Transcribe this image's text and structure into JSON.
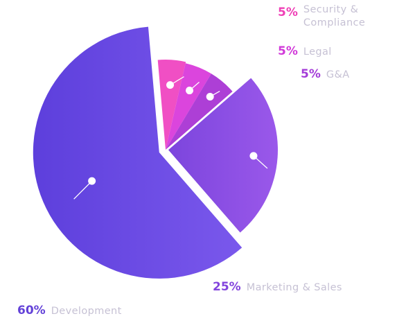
{
  "chart_data": {
    "type": "pie",
    "slices": [
      {
        "label": "Security & Compliance",
        "value": 5,
        "value_label": "5%",
        "color": "#f04fc4"
      },
      {
        "label": "Legal",
        "value": 5,
        "value_label": "5%",
        "color": "#db45dd"
      },
      {
        "label": "G&A",
        "value": 5,
        "value_label": "5%",
        "color": "#ad3fd6"
      },
      {
        "label": "Marketing & Sales",
        "value": 25,
        "value_label": "25%",
        "color": "#8f4fe2"
      },
      {
        "label": "Development",
        "value": 60,
        "value_label": "60%",
        "color": "#6d4ee6"
      }
    ],
    "label_colors": {
      "pink": "#ef3fb6",
      "magenta": "#d13ad9",
      "purple": "#a43cd8",
      "violet": "#8344dd",
      "indigo": "#6342d8",
      "category_text": "#c6c1d4"
    },
    "exploded": true
  }
}
